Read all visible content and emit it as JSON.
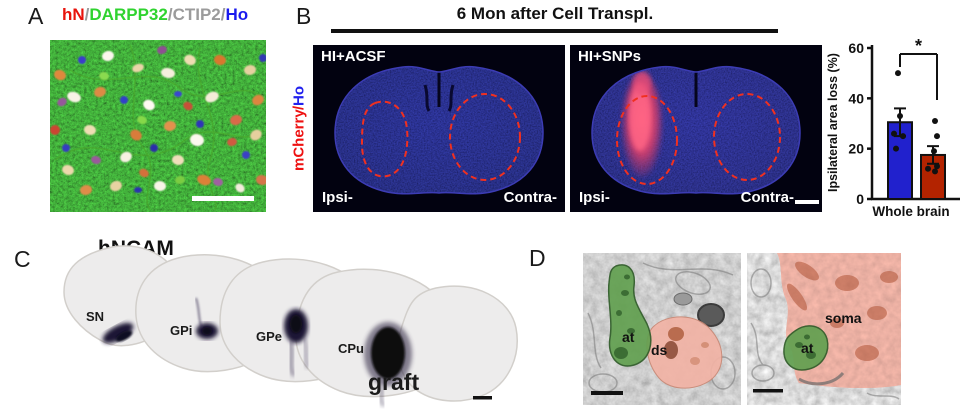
{
  "figure": {
    "panel_a": {
      "letter": "A",
      "slash": "/",
      "markers": [
        {
          "text": "hN",
          "color": "#e8130c"
        },
        {
          "text": "DARPP32",
          "color": "#2fd32f"
        },
        {
          "text": "CTIP2",
          "color": "#9b9b9b"
        },
        {
          "text": "Ho",
          "color": "#1a1aee"
        }
      ]
    },
    "panel_b": {
      "letter": "B",
      "title": "6 Mon after Cell Transpl.",
      "side_label": {
        "mcherry": "mCherry",
        "slash": "/",
        "ho": "Ho",
        "mcherry_color": "#ee1111",
        "ho_color": "#2222ee"
      },
      "images": [
        {
          "label": "HI+ACSF",
          "left_tag": "Ipsi-",
          "right_tag": "Contra-"
        },
        {
          "label": "HI+SNPs",
          "left_tag": "Ipsi-",
          "right_tag": "Contra-"
        }
      ]
    },
    "panel_c": {
      "letter": "C",
      "title": "hNCAM",
      "regions": [
        {
          "label": "SN"
        },
        {
          "label": "GPi"
        },
        {
          "label": "GPe"
        },
        {
          "label": "CPu"
        }
      ],
      "graft_label": "graft"
    },
    "panel_d": {
      "letter": "D",
      "left_labels": {
        "at": "at",
        "ds": "ds"
      },
      "right_labels": {
        "at": "at",
        "soma": "soma"
      }
    }
  },
  "chart_data": {
    "type": "bar",
    "title": "",
    "categories": [
      "HI+ACSF",
      "HI+SNPs"
    ],
    "values": [
      30.5,
      17.5
    ],
    "errors": [
      5.5,
      3.5
    ],
    "points": [
      [
        50,
        33,
        26,
        25,
        20
      ],
      [
        31,
        25,
        19,
        13,
        12,
        11
      ]
    ],
    "bar_colors": [
      "#2121cd",
      "#b32300"
    ],
    "ylabel": "Ipsilateral area loss (%)",
    "xlabel": "Whole brain",
    "ylim": [
      0,
      60
    ],
    "yticks": [
      0,
      20,
      40,
      60
    ],
    "significance": "*",
    "grid": false,
    "legend_position": "none"
  }
}
